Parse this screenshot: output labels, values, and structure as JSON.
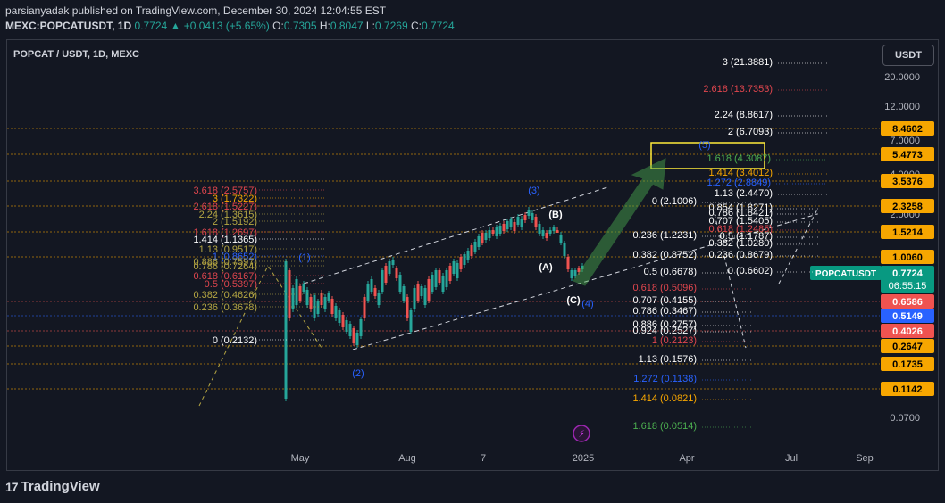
{
  "header": {
    "line1": "parsianyadak published on TradingView.com, December 30, 2024 12:04:55 EST",
    "symbol": "MEXC:POPCATUSDT, 1D",
    "last": "0.7724",
    "change": "▲ +0.0413 (+5.65%)",
    "o_label": "O:",
    "o": "0.7305",
    "h_label": "H:",
    "h": "0.8047",
    "l_label": "L:",
    "l": "0.7269",
    "c_label": "C:",
    "c": "0.7724"
  },
  "chart_title": "POPCAT / USDT, 1D, MEXC",
  "currency_button": "USDT",
  "footer": {
    "brand": "TradingView",
    "logo": "17"
  },
  "colors": {
    "bg": "#131722",
    "up": "#26a69a",
    "down": "#ef5350",
    "orange": "#f7a600",
    "white": "#ffffff",
    "blue": "#2962ff",
    "olive": "#b5a642",
    "red": "#e0464e",
    "green_fib": "#4caf50",
    "grey": "#9598a1",
    "purple": "#9c27b0"
  },
  "chart_data": {
    "type": "candlestick",
    "title": "POPCAT / USDT, 1D, MEXC",
    "y_scale": "log",
    "x_ticks": [
      "May",
      "Aug",
      "7",
      "2025",
      "Apr",
      "Jul",
      "Sep"
    ],
    "y_ticks": [
      "20.0000",
      "12.0000",
      "7.0000",
      "4.0000",
      "2.0000",
      "1.0000",
      "0.0700"
    ],
    "price_tags": [
      {
        "value": "8.4602",
        "color": "#f7a600"
      },
      {
        "value": "5.4773",
        "color": "#f7a600"
      },
      {
        "value": "3.5376",
        "color": "#f7a600"
      },
      {
        "value": "2.3258",
        "color": "#f7a600"
      },
      {
        "value": "1.5214",
        "color": "#f7a600"
      },
      {
        "value": "1.0060",
        "color": "#f7a600"
      },
      {
        "value": "0.6586",
        "color": "#ef5350"
      },
      {
        "value": "0.5149",
        "color": "#2962ff"
      },
      {
        "value": "0.4026",
        "color": "#ef5350"
      },
      {
        "value": "0.2647",
        "color": "#f7a600"
      },
      {
        "value": "0.1735",
        "color": "#f7a600"
      },
      {
        "value": "0.1142",
        "color": "#f7a600"
      }
    ],
    "current": {
      "label": "POPCATUSDT",
      "price": "0.7724",
      "countdown": "06:55:15"
    },
    "fib_left": [
      {
        "text": "3.618 (2.5757)",
        "color": "#e0464e"
      },
      {
        "text": "3 (1.7322)",
        "color": "#f7a600"
      },
      {
        "text": "2.618 (1.5227)",
        "color": "#e0464e"
      },
      {
        "text": "2.24 (1.3615)",
        "color": "#b5a642"
      },
      {
        "text": "2 (1.5192)",
        "color": "#b5a642"
      },
      {
        "text": "1.618 (1.2697)",
        "color": "#e0464e"
      },
      {
        "text": "1.414 (1.1365)",
        "color": "#ffffff"
      },
      {
        "text": "1.13 (0.9517)",
        "color": "#b5a642"
      },
      {
        "text": "1 (0.8652)",
        "color": "#2962ff"
      },
      {
        "text": "0.886 (0.7597)",
        "color": "#b5a642"
      },
      {
        "text": "0.786 (0.7264)",
        "color": "#b5a642"
      },
      {
        "text": "0.618 (0.6167)",
        "color": "#e0464e"
      },
      {
        "text": "0.5 (0.5397)",
        "color": "#e0464e"
      },
      {
        "text": "0.382 (0.4626)",
        "color": "#b5a642"
      },
      {
        "text": "0.236 (0.3678)",
        "color": "#b5a642"
      },
      {
        "text": "0 (0.2132)",
        "color": "#ffffff"
      }
    ],
    "fib_right": [
      {
        "text": "3 (21.3881)",
        "color": "#ffffff"
      },
      {
        "text": "2.618 (13.7353)",
        "color": "#e0464e"
      },
      {
        "text": "2.24 (8.8617)",
        "color": "#ffffff"
      },
      {
        "text": "2 (6.7093)",
        "color": "#ffffff"
      },
      {
        "text": "1.618 (4.3087)",
        "color": "#4caf50"
      },
      {
        "text": "1.414 (3.4012)",
        "color": "#f7a600"
      },
      {
        "text": "1.272 (2.8849)",
        "color": "#2962ff"
      },
      {
        "text": "1.13 (2.4470)",
        "color": "#ffffff"
      },
      {
        "text": "0 (2.1006)",
        "color": "#ffffff"
      },
      {
        "text": "0.236 (1.2231)",
        "color": "#ffffff"
      },
      {
        "text": "0.382 (0.8752)",
        "color": "#ffffff"
      },
      {
        "text": "0.5 (0.6678)",
        "color": "#ffffff"
      },
      {
        "text": "0.618 (0.5096)",
        "color": "#e0464e"
      },
      {
        "text": "0.707 (0.4155)",
        "color": "#ffffff"
      },
      {
        "text": "0.786 (0.3467)",
        "color": "#ffffff"
      },
      {
        "text": "0.886 (0.2757)",
        "color": "#ffffff"
      },
      {
        "text": "0.924 (0.2527)",
        "color": "#ffffff"
      },
      {
        "text": "1 (0.2123)",
        "color": "#e0464e"
      },
      {
        "text": "1.13 (0.1576)",
        "color": "#ffffff"
      },
      {
        "text": "1.272 (0.1138)",
        "color": "#2962ff"
      },
      {
        "text": "1.414 (0.0821)",
        "color": "#f7a600"
      },
      {
        "text": "1.618 (0.0514)",
        "color": "#4caf50"
      }
    ],
    "fib_far": [
      {
        "text": "0.854 (1.8271)",
        "color": "#ffffff"
      },
      {
        "text": "0.786 (1.8421)",
        "color": "#ffffff"
      },
      {
        "text": "0.707 (1.5405)",
        "color": "#ffffff"
      },
      {
        "text": "0.618 (1.2485)",
        "color": "#e0464e"
      },
      {
        "text": "0.5 (1.1787)",
        "color": "#ffffff"
      },
      {
        "text": "0.382 (1.0280)",
        "color": "#ffffff"
      },
      {
        "text": "0.236 (0.8679)",
        "color": "#ffffff"
      },
      {
        "text": "0 (0.6602)",
        "color": "#ffffff"
      }
    ],
    "wave_labels": [
      "(1)",
      "(2)",
      "(3)",
      "(4)",
      "(5)",
      "(A)",
      "(B)",
      "(C)"
    ]
  }
}
